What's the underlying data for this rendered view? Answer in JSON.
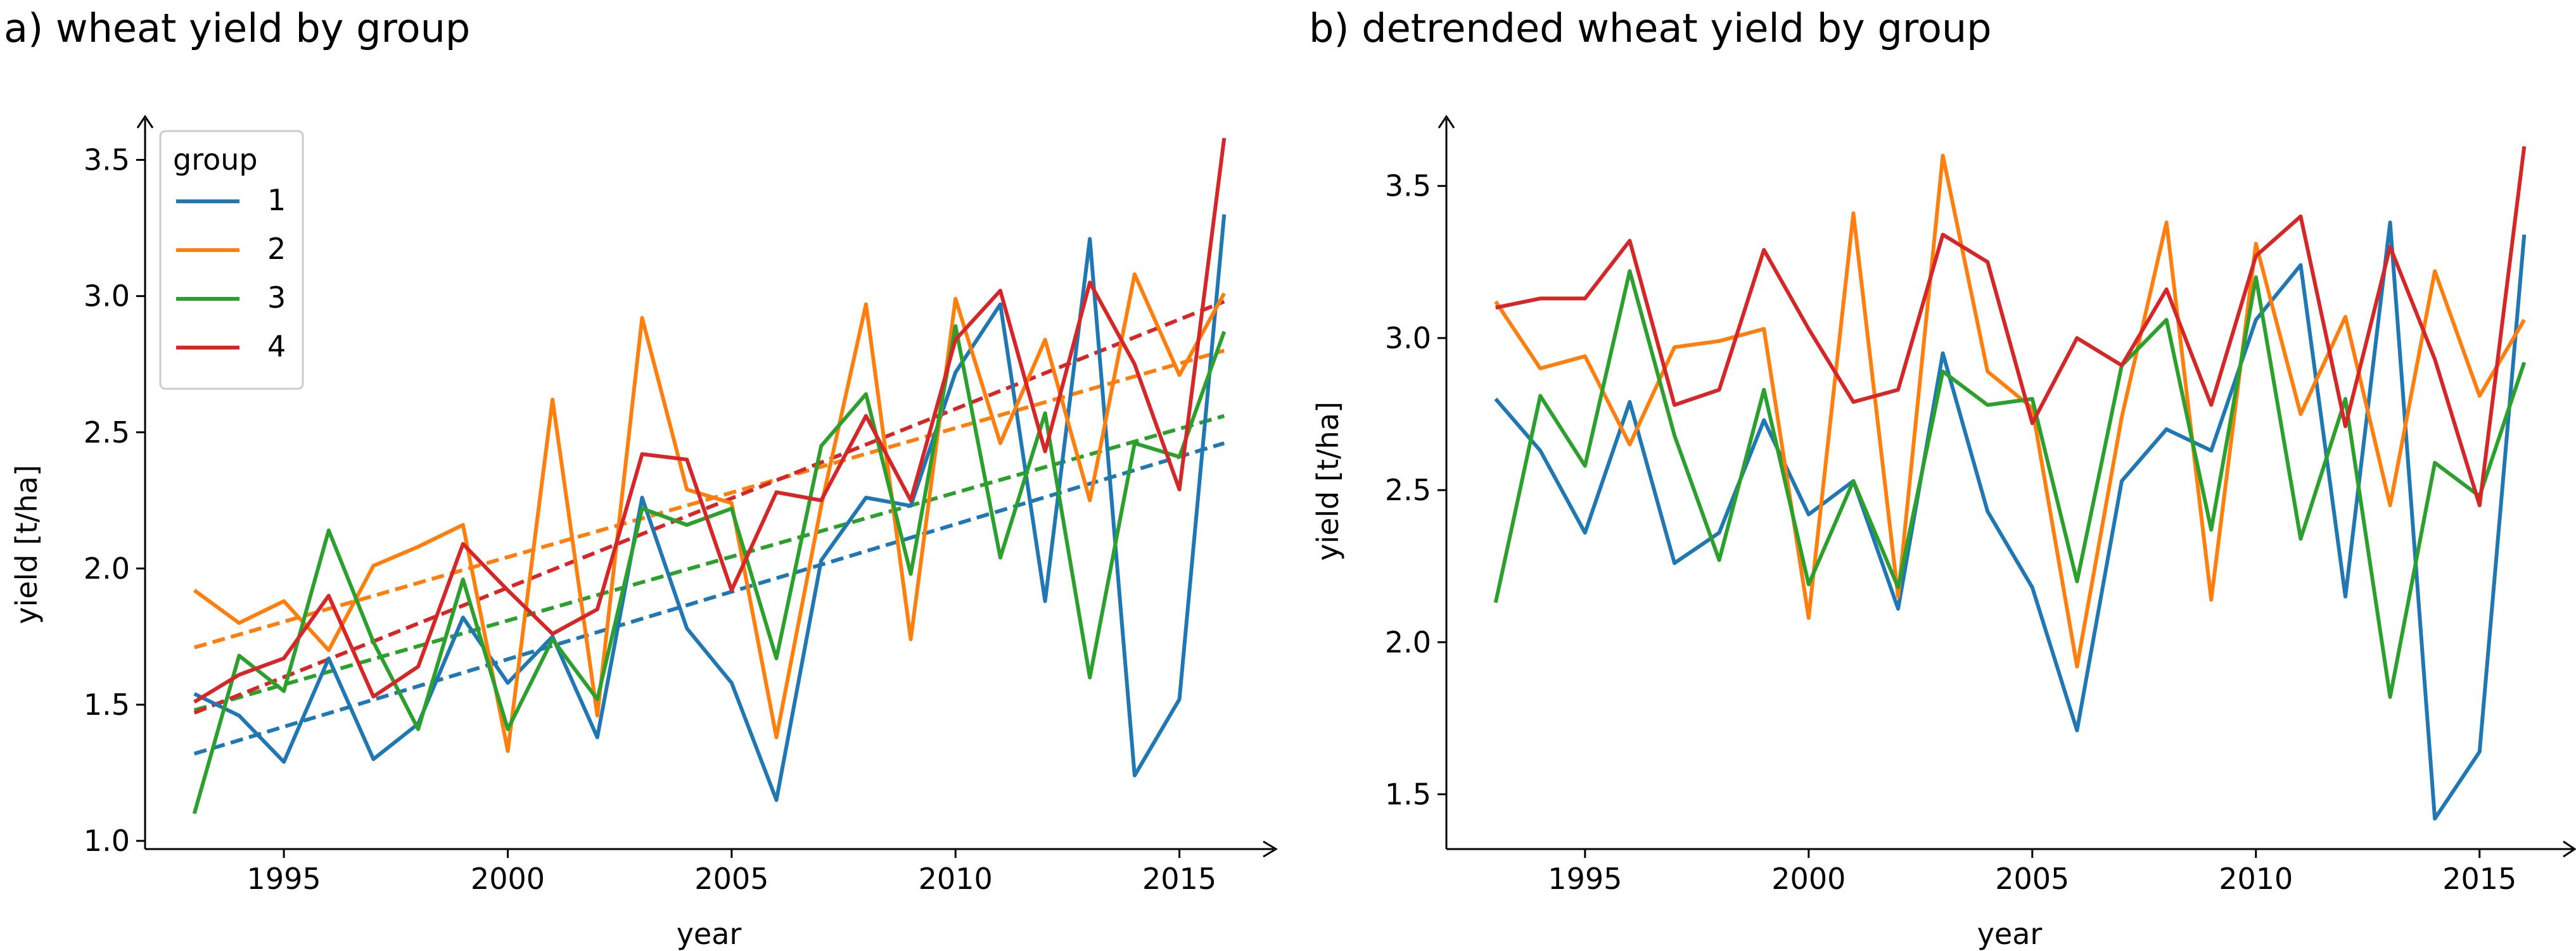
{
  "colors": {
    "1": "#1f77b4",
    "2": "#ff7f0e",
    "3": "#2ca02c",
    "4": "#d62728"
  },
  "chart_data": [
    {
      "type": "line",
      "title": "a) wheat yield by group",
      "xlabel": "year",
      "ylabel": "yield [t/ha]",
      "xlim": [
        1991.9,
        2017.1
      ],
      "ylim": [
        0.97,
        3.65
      ],
      "xticks": [
        1995,
        2000,
        2005,
        2010,
        2015
      ],
      "yticks": [
        1.0,
        1.5,
        2.0,
        2.5,
        3.0,
        3.5
      ],
      "ytick_labels": [
        "1.0",
        "1.5",
        "2.0",
        "2.5",
        "3.0",
        "3.5"
      ],
      "legend": {
        "title": "group",
        "placement": "upper left"
      },
      "x": [
        1993,
        1994,
        1995,
        1996,
        1997,
        1998,
        1999,
        2000,
        2001,
        2002,
        2003,
        2004,
        2005,
        2006,
        2007,
        2008,
        2009,
        2010,
        2011,
        2012,
        2013,
        2014,
        2015,
        2016
      ],
      "series": [
        {
          "name": "1",
          "color_key": "1",
          "values": [
            1.54,
            1.46,
            1.29,
            1.67,
            1.3,
            1.43,
            1.82,
            1.58,
            1.75,
            1.38,
            2.26,
            1.78,
            1.58,
            1.15,
            2.03,
            2.26,
            2.23,
            2.72,
            2.97,
            1.88,
            3.21,
            1.24,
            1.52,
            3.3
          ],
          "trend": [
            1.32,
            2.46
          ]
        },
        {
          "name": "2",
          "color_key": "2",
          "values": [
            1.92,
            1.8,
            1.88,
            1.7,
            2.01,
            2.08,
            2.16,
            1.33,
            2.62,
            1.46,
            2.92,
            2.29,
            2.24,
            1.38,
            2.23,
            2.97,
            1.74,
            2.99,
            2.46,
            2.84,
            2.25,
            3.08,
            2.71,
            3.01
          ],
          "trend": [
            1.71,
            2.8
          ]
        },
        {
          "name": "3",
          "color_key": "3",
          "values": [
            1.1,
            1.68,
            1.55,
            2.14,
            1.73,
            1.41,
            1.96,
            1.41,
            1.74,
            1.52,
            2.22,
            2.16,
            2.22,
            1.67,
            2.45,
            2.64,
            1.98,
            2.89,
            2.04,
            2.57,
            1.6,
            2.46,
            2.41,
            2.87
          ],
          "trend": [
            1.48,
            2.56
          ]
        },
        {
          "name": "4",
          "color_key": "4",
          "values": [
            1.51,
            1.61,
            1.67,
            1.9,
            1.53,
            1.64,
            2.09,
            1.92,
            1.76,
            1.85,
            2.42,
            2.4,
            1.92,
            2.28,
            2.25,
            2.56,
            2.25,
            2.84,
            3.02,
            2.43,
            3.05,
            2.75,
            2.29,
            3.58
          ],
          "trend": [
            1.47,
            2.98
          ]
        }
      ]
    },
    {
      "type": "line",
      "title": "b) detrended wheat yield by group",
      "xlabel": "year",
      "ylabel": "yield [t/ha]",
      "xlim": [
        1991.9,
        2017.1
      ],
      "ylim": [
        1.32,
        3.72
      ],
      "xticks": [
        1995,
        2000,
        2005,
        2010,
        2015
      ],
      "yticks": [
        1.5,
        2.0,
        2.5,
        3.0,
        3.5
      ],
      "ytick_labels": [
        "1.5",
        "2.0",
        "2.5",
        "3.0",
        "3.5"
      ],
      "x": [
        1993,
        1994,
        1995,
        1996,
        1997,
        1998,
        1999,
        2000,
        2001,
        2002,
        2003,
        2004,
        2005,
        2006,
        2007,
        2008,
        2009,
        2010,
        2011,
        2012,
        2013,
        2014,
        2015,
        2016
      ],
      "series": [
        {
          "name": "1",
          "color_key": "1",
          "values": [
            2.8,
            2.63,
            2.36,
            2.79,
            2.26,
            2.36,
            2.73,
            2.42,
            2.53,
            2.11,
            2.95,
            2.43,
            2.18,
            1.71,
            2.53,
            2.7,
            2.63,
            3.06,
            3.24,
            2.15,
            3.38,
            1.42,
            1.64,
            3.34
          ]
        },
        {
          "name": "2",
          "color_key": "2",
          "values": [
            3.12,
            2.9,
            2.94,
            2.65,
            2.97,
            2.99,
            3.03,
            2.08,
            3.41,
            2.15,
            3.6,
            2.89,
            2.77,
            1.92,
            2.74,
            3.38,
            2.14,
            3.31,
            2.75,
            3.07,
            2.45,
            3.22,
            2.81,
            3.06
          ]
        },
        {
          "name": "3",
          "color_key": "3",
          "values": [
            2.13,
            2.81,
            2.58,
            3.22,
            2.68,
            2.27,
            2.83,
            2.19,
            2.53,
            2.18,
            2.89,
            2.78,
            2.8,
            2.2,
            2.91,
            3.06,
            2.37,
            3.2,
            2.34,
            2.8,
            1.82,
            2.59,
            2.48,
            2.92
          ]
        },
        {
          "name": "4",
          "color_key": "4",
          "values": [
            3.1,
            3.13,
            3.13,
            3.32,
            2.78,
            2.83,
            3.29,
            3.03,
            2.79,
            2.83,
            3.34,
            3.25,
            2.72,
            3.0,
            2.91,
            3.16,
            2.78,
            3.27,
            3.4,
            2.71,
            3.3,
            2.93,
            2.45,
            3.63
          ]
        }
      ]
    }
  ]
}
